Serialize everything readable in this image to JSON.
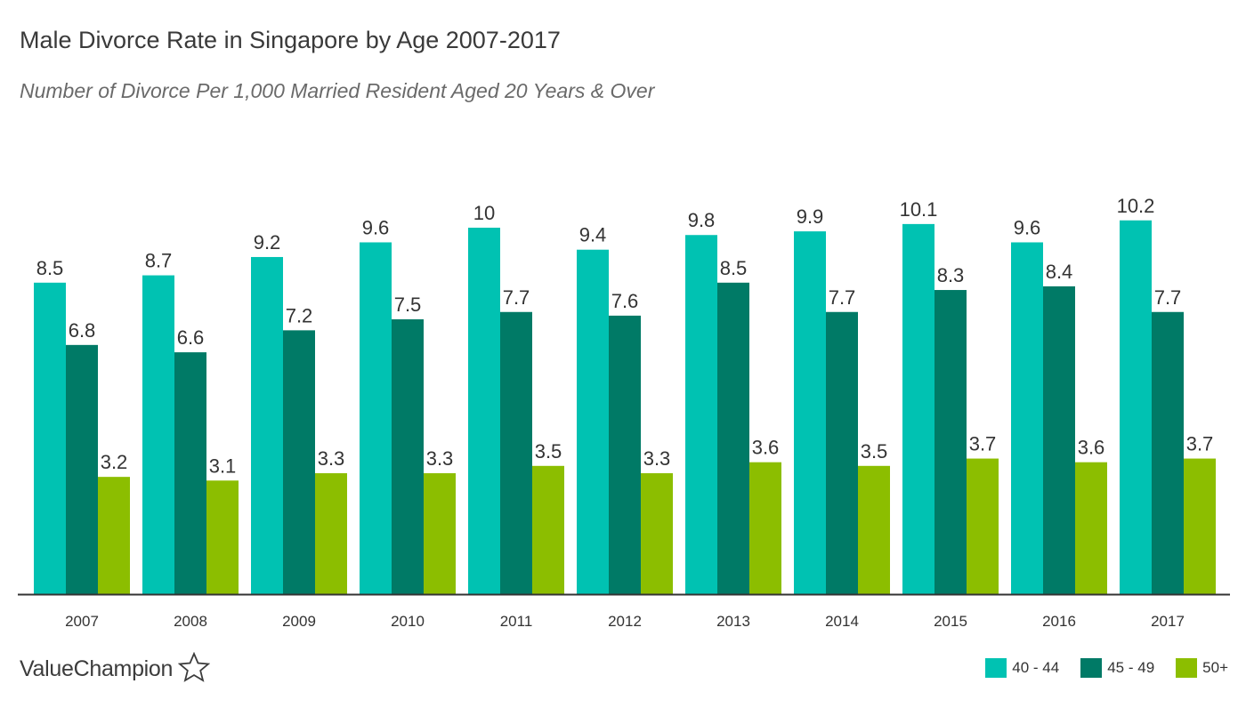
{
  "chart_data": {
    "type": "bar",
    "title": "Male Divorce Rate in Singapore by Age 2007-2017",
    "subtitle": "Number of Divorce Per 1,000 Married Resident Aged 20 Years & Over",
    "categories": [
      "2007",
      "2008",
      "2009",
      "2010",
      "2011",
      "2012",
      "2013",
      "2014",
      "2015",
      "2016",
      "2017"
    ],
    "series": [
      {
        "name": "40 - 44",
        "color": "#00c2b2",
        "values": [
          8.5,
          8.7,
          9.2,
          9.6,
          10,
          9.4,
          9.8,
          9.9,
          10.1,
          9.6,
          10.2
        ]
      },
      {
        "name": "45 - 49",
        "color": "#007a66",
        "values": [
          6.8,
          6.6,
          7.2,
          7.5,
          7.7,
          7.6,
          8.5,
          7.7,
          8.3,
          8.4,
          7.7
        ]
      },
      {
        "name": "50+",
        "color": "#8cbe00",
        "values": [
          3.2,
          3.1,
          3.3,
          3.3,
          3.5,
          3.3,
          3.6,
          3.5,
          3.7,
          3.6,
          3.7
        ]
      }
    ],
    "value_labels": [
      [
        "8.5",
        "8.7",
        "9.2",
        "9.6",
        "10",
        "9.4",
        "9.8",
        "9.9",
        "10.1",
        "9.6",
        "10.2"
      ],
      [
        "6.8",
        "6.6",
        "7.2",
        "7.5",
        "7.7",
        "7.6",
        "8.5",
        "7.7",
        "8.3",
        "8.4",
        "7.7"
      ],
      [
        "3.2",
        "3.1",
        "3.3",
        "3.3",
        "3.5",
        "3.3",
        "3.6",
        "3.5",
        "3.7",
        "3.6",
        "3.7"
      ]
    ],
    "ylim": [
      0,
      12
    ],
    "grid": false,
    "legend_position": "bottom-right"
  },
  "brand": {
    "name": "ValueChampion",
    "icon": "star-outline-icon"
  }
}
